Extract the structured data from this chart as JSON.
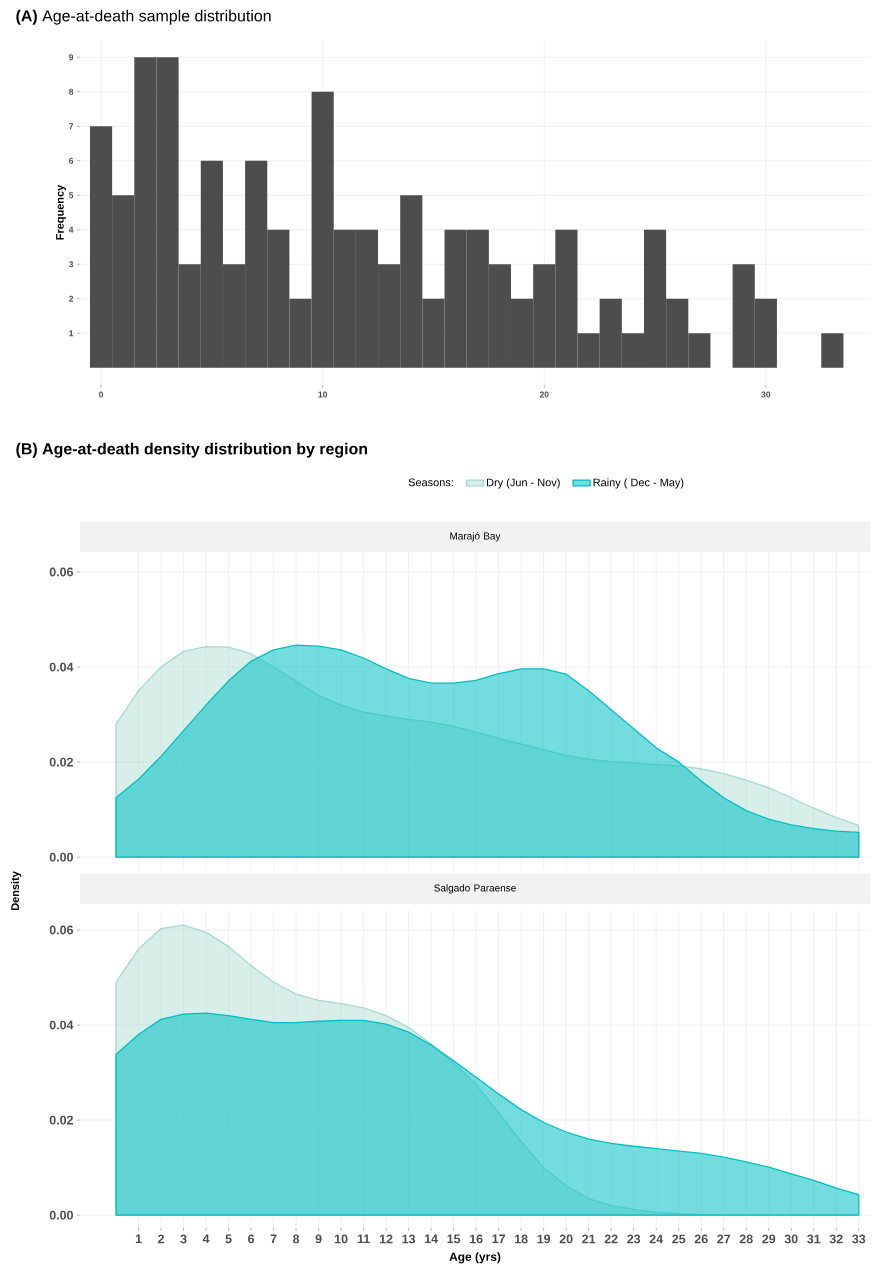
{
  "chart_data": [
    {
      "type": "histogram",
      "title": "**(A)** Age-at-death sample distribution",
      "ylabel": "Frequency",
      "bins": [
        -0.5,
        0.5,
        1.5,
        2.5,
        3.5,
        4.5,
        5.5,
        6.5,
        7.5,
        8.5,
        9.5,
        10.5,
        11.5,
        12.5,
        13.5,
        14.5,
        15.5,
        16.5,
        17.5,
        18.5,
        19.5,
        20.5,
        21.5,
        22.5,
        23.5,
        24.5,
        25.5,
        26.5,
        27.5,
        28.5,
        29.5,
        30.5,
        31.5,
        32.5,
        33.5
      ],
      "values": [
        7,
        5,
        9,
        9,
        3,
        6,
        3,
        6,
        4,
        2,
        8,
        4,
        4,
        3,
        5,
        2,
        4,
        4,
        3,
        2,
        3,
        4,
        1,
        2,
        1,
        4,
        2,
        1,
        0,
        3,
        2,
        0,
        0,
        1
      ],
      "color": "#4d4d4d",
      "xlim": [
        -0.95,
        34.7
      ],
      "ylim": [
        -0.5,
        9.5
      ],
      "xticks": [
        0,
        10,
        20,
        30
      ],
      "yticks": [
        1,
        2,
        3,
        4,
        5,
        6,
        7,
        8,
        9
      ],
      "grid": true
    },
    {
      "type": "area",
      "title": "(B) Age-at-death density distribution by region",
      "subtitle": "Marajó Bay",
      "legend_title": "Seasons:",
      "legend": "top",
      "tick_labels": "y",
      "x": [
        0,
        1,
        2,
        3,
        4,
        5,
        6,
        7,
        8,
        9,
        10,
        11,
        12,
        13,
        14,
        15,
        16,
        17,
        18,
        19,
        20,
        21,
        22,
        23,
        24,
        25,
        26,
        27,
        28,
        29,
        30,
        31,
        32,
        33
      ],
      "series": [
        {
          "name": "Dry (Jun - Nov)",
          "color": "#a6d9cf",
          "values": [
            0.028,
            0.035,
            0.04,
            0.0433,
            0.0443,
            0.0442,
            0.0428,
            0.04,
            0.037,
            0.034,
            0.032,
            0.0305,
            0.0297,
            0.029,
            0.0284,
            0.0275,
            0.0263,
            0.025,
            0.0238,
            0.0226,
            0.0214,
            0.0206,
            0.0201,
            0.0198,
            0.0195,
            0.0192,
            0.0186,
            0.0176,
            0.0162,
            0.0146,
            0.0125,
            0.0103,
            0.0083,
            0.0067
          ]
        },
        {
          "name": "Rainy ( Dec - May)",
          "color": "#00bfc4",
          "values": [
            0.0125,
            0.0164,
            0.0212,
            0.0266,
            0.032,
            0.0371,
            0.0412,
            0.0436,
            0.0446,
            0.0444,
            0.0436,
            0.0419,
            0.0396,
            0.0376,
            0.0366,
            0.0366,
            0.0372,
            0.0386,
            0.0396,
            0.0396,
            0.0385,
            0.035,
            0.031,
            0.027,
            0.023,
            0.02,
            0.016,
            0.0125,
            0.0098,
            0.008,
            0.0068,
            0.006,
            0.0055,
            0.0052
          ]
        }
      ],
      "xlim": [
        -1.6,
        33.5
      ],
      "ylim": [
        -0.0027,
        0.0642
      ],
      "xticks": [
        1,
        2,
        3,
        4,
        5,
        6,
        7,
        8,
        9,
        10,
        11,
        12,
        13,
        14,
        15,
        16,
        17,
        18,
        19,
        20,
        21,
        22,
        23,
        24,
        25,
        26,
        27,
        28,
        29,
        30,
        31,
        32,
        33
      ],
      "yticks": [
        {
          "value": 0,
          "label": "0.00"
        },
        {
          "value": 0.02,
          "label": "0.02"
        },
        {
          "value": 0.04,
          "label": "0.04"
        },
        {
          "value": 0.06,
          "label": "0.06"
        }
      ],
      "grid": true
    },
    {
      "type": "area",
      "title": "Salgado Paraense",
      "xlabel": "Age (yrs)",
      "ylabel": "Density",
      "x": [
        0,
        1,
        2,
        3,
        4,
        5,
        6,
        7,
        8,
        9,
        10,
        11,
        12,
        13,
        14,
        15,
        16,
        17,
        18,
        19,
        20,
        21,
        22,
        23,
        24,
        25,
        26,
        27,
        28,
        29,
        30,
        31,
        32,
        33
      ],
      "series": [
        {
          "color": "#a6d9cf",
          "values": [
            0.049,
            0.056,
            0.0603,
            0.061,
            0.0595,
            0.0565,
            0.0525,
            0.049,
            0.0465,
            0.0452,
            0.0445,
            0.0436,
            0.042,
            0.0395,
            0.036,
            0.032,
            0.0275,
            0.0215,
            0.0155,
            0.01,
            0.0062,
            0.0035,
            0.002,
            0.0012,
            0.0006,
            0.0003,
            0.0001,
            0,
            0,
            0,
            0,
            0,
            0,
            0
          ]
        },
        {
          "color": "#00bfc4",
          "values": [
            0.0338,
            0.038,
            0.0412,
            0.0423,
            0.0425,
            0.042,
            0.0412,
            0.0405,
            0.0405,
            0.0408,
            0.041,
            0.041,
            0.0402,
            0.0385,
            0.0358,
            0.0325,
            0.029,
            0.0255,
            0.0222,
            0.0195,
            0.0175,
            0.016,
            0.0151,
            0.0145,
            0.014,
            0.0135,
            0.013,
            0.0122,
            0.0112,
            0.0101,
            0.0087,
            0.0073,
            0.0057,
            0.0043
          ]
        }
      ],
      "xlim": [
        -1.6,
        33.5
      ],
      "ylim": [
        -0.0027,
        0.0642
      ],
      "xticks": [
        1,
        2,
        3,
        4,
        5,
        6,
        7,
        8,
        9,
        10,
        11,
        12,
        13,
        14,
        15,
        16,
        17,
        18,
        19,
        20,
        21,
        22,
        23,
        24,
        25,
        26,
        27,
        28,
        29,
        30,
        31,
        32,
        33
      ],
      "yticks": [
        {
          "value": 0,
          "label": "0.00"
        },
        {
          "value": 0.02,
          "label": "0.02"
        },
        {
          "value": 0.04,
          "label": "0.04"
        },
        {
          "value": 0.06,
          "label": "0.06"
        }
      ],
      "grid": true
    }
  ]
}
